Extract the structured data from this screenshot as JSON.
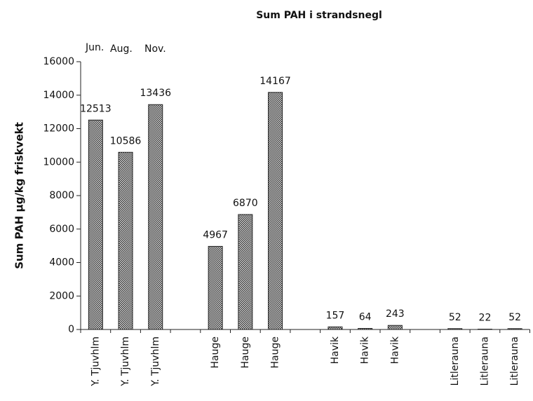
{
  "chart_data": {
    "type": "bar",
    "title": "Sum PAH i strandsnegl",
    "y_label": "Sum PAH µg/kg friskvekt",
    "annotations": [
      "Jun.",
      "Aug.",
      "Nov."
    ],
    "categories": [
      "Y. Tjuvhlm",
      "Y. Tjuvhlm",
      "Y. Tjuvhlm",
      null,
      "Hauge",
      "Hauge",
      "Hauge",
      null,
      "Havik",
      "Havik",
      "Havik",
      null,
      "Litlerauna",
      "Litlerauna",
      "Litlerauna"
    ],
    "values": [
      12513,
      10586,
      13436,
      null,
      4967,
      6870,
      14167,
      null,
      157,
      64,
      243,
      null,
      52,
      22,
      52
    ],
    "color": "#555555",
    "ylim": [
      0,
      16000
    ],
    "yticks": [
      0,
      2000,
      4000,
      6000,
      8000,
      10000,
      12000,
      14000,
      16000
    ]
  }
}
